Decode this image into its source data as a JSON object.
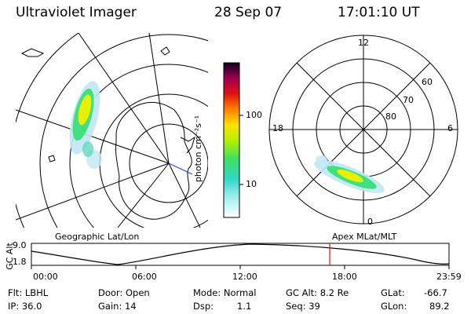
{
  "header": {
    "instrument": "Ultraviolet Imager",
    "date": "28 Sep 07",
    "time": "17:01:10 UT"
  },
  "colorbar": {
    "unit_label": "photon cm⁻²s⁻¹",
    "ticks": [
      "100",
      "10"
    ],
    "scale": "log"
  },
  "left_panel": {
    "label": "Geographic Lat/Lon"
  },
  "right_panel": {
    "label": "Apex MLat/MLT",
    "mlt_labels": [
      "12",
      "18",
      "6",
      "0"
    ],
    "mlat_labels": [
      "60",
      "70",
      "80"
    ]
  },
  "altitude_plot": {
    "ylabel": "GC Alt",
    "yticks": [
      "9.0",
      "1.8"
    ],
    "xticks": [
      "00:00",
      "06:00",
      "12:00",
      "18:00",
      "23:59"
    ],
    "marker_time": "17:01"
  },
  "footer": {
    "filter": "Flt: LBHL",
    "ip": "IP: 36.0",
    "door": "Door: Open",
    "gain": "Gain: 14",
    "mode": "Mode: Normal",
    "dsp_label": "Dsp:",
    "dsp_value": "1.1",
    "gc_alt": "GC Alt: 8.2 Re",
    "seq": "Seq: 39",
    "glat_label": "GLat:",
    "glat_value": "-66.7",
    "glon_label": "GLon:",
    "glon_value": "89.2"
  },
  "colors": {
    "marker": "#e02020",
    "aurora_core": "#e8f000",
    "aurora_mid": "#30e070",
    "aurora_edge": "#a0e0f0"
  }
}
